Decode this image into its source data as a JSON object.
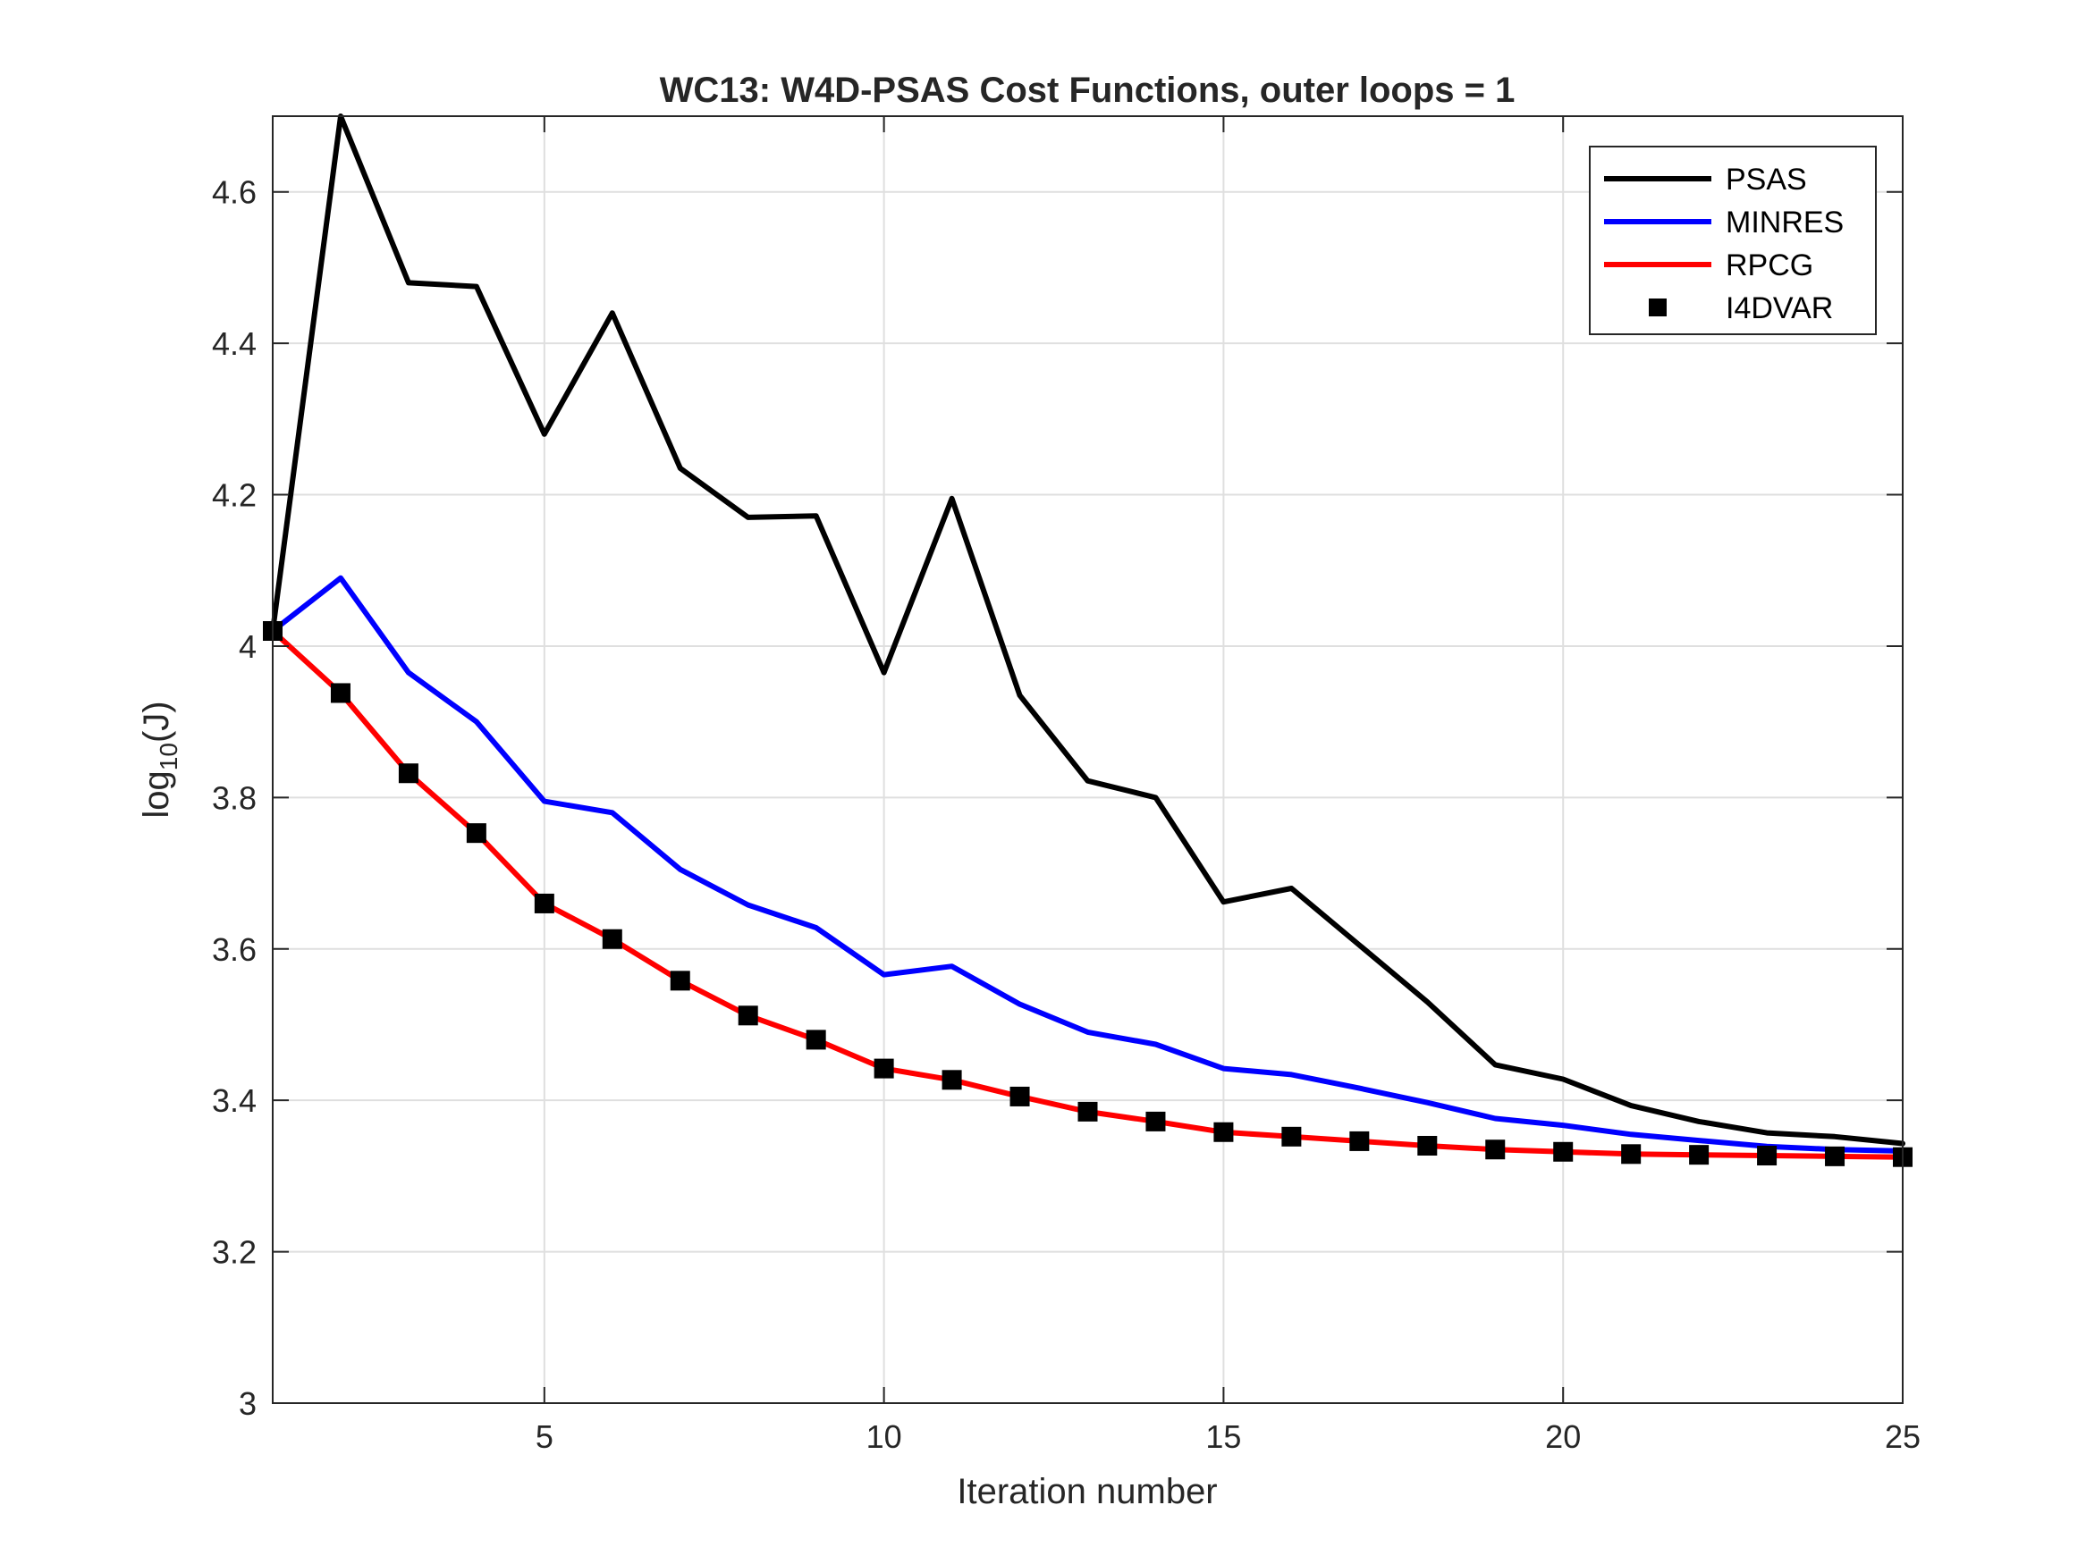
{
  "chart_data": {
    "type": "line",
    "title": "WC13: W4D-PSAS Cost Functions, outer loops = 1",
    "xlabel": "Iteration number",
    "ylabel": {
      "base": "log",
      "subscript": "10",
      "suffix": "(J)"
    },
    "xlim": [
      1,
      25
    ],
    "ylim": [
      3,
      4.7
    ],
    "x_ticks": [
      5,
      10,
      15,
      20,
      25
    ],
    "y_ticks": [
      3,
      3.2,
      3.4,
      3.6,
      3.8,
      4,
      4.2,
      4.4,
      4.6
    ],
    "grid": true,
    "legend_position": "top-right",
    "x": [
      1,
      2,
      3,
      4,
      5,
      6,
      7,
      8,
      9,
      10,
      11,
      12,
      13,
      14,
      15,
      16,
      17,
      18,
      19,
      20,
      21,
      22,
      23,
      24,
      25
    ],
    "series": [
      {
        "name": "PSAS",
        "color": "#000000",
        "style": "line",
        "values": [
          4.02,
          4.7,
          4.48,
          4.475,
          4.28,
          4.44,
          4.235,
          4.17,
          4.172,
          3.965,
          4.195,
          3.935,
          3.822,
          3.8,
          3.662,
          3.68,
          3.605,
          3.53,
          3.447,
          3.428,
          3.393,
          3.372,
          3.357,
          3.352,
          3.343
        ]
      },
      {
        "name": "MINRES",
        "color": "#0000ff",
        "style": "line",
        "values": [
          4.02,
          4.09,
          3.965,
          3.9,
          3.795,
          3.78,
          3.705,
          3.658,
          3.628,
          3.566,
          3.577,
          3.527,
          3.49,
          3.474,
          3.442,
          3.434,
          3.416,
          3.397,
          3.376,
          3.367,
          3.355,
          3.347,
          3.339,
          3.335,
          3.333
        ]
      },
      {
        "name": "RPCG",
        "color": "#ff0000",
        "style": "line",
        "values": [
          4.02,
          3.938,
          3.832,
          3.753,
          3.66,
          3.613,
          3.558,
          3.512,
          3.48,
          3.442,
          3.427,
          3.405,
          3.385,
          3.372,
          3.358,
          3.352,
          3.346,
          3.34,
          3.335,
          3.332,
          3.329,
          3.328,
          3.327,
          3.326,
          3.325
        ]
      },
      {
        "name": "I4DVAR",
        "color": "#000000",
        "style": "marker",
        "values": [
          4.02,
          3.938,
          3.832,
          3.753,
          3.66,
          3.613,
          3.558,
          3.512,
          3.48,
          3.442,
          3.427,
          3.405,
          3.385,
          3.372,
          3.358,
          3.352,
          3.346,
          3.34,
          3.335,
          3.332,
          3.329,
          3.328,
          3.327,
          3.326,
          3.325
        ]
      }
    ]
  }
}
